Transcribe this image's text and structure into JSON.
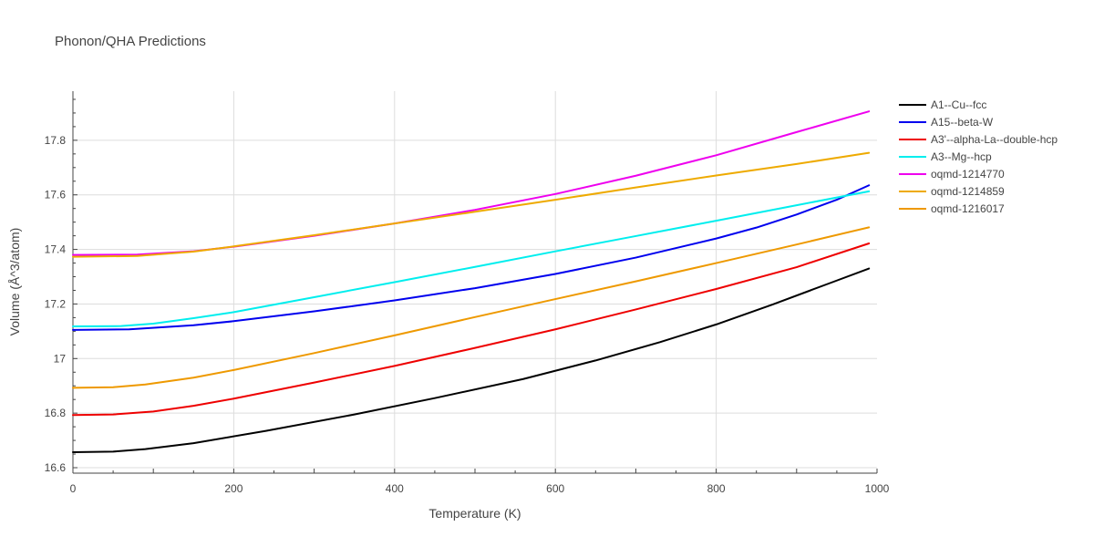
{
  "chart_data": {
    "type": "line",
    "title": "Phonon/QHA Predictions",
    "xlabel": "Temperature (K)",
    "ylabel": "Volume (Å^3/atom)",
    "xlim": [
      0,
      1000
    ],
    "ylim": [
      16.58,
      17.98
    ],
    "xticks": [
      0,
      200,
      400,
      600,
      800,
      1000
    ],
    "xtick_labels": [
      "0",
      "200",
      "400",
      "600",
      "800",
      "1000"
    ],
    "yticks": [
      16.6,
      16.8,
      17.0,
      17.2,
      17.4,
      17.6,
      17.8
    ],
    "ytick_labels": [
      "16.6",
      "16.8",
      "17",
      "17.2",
      "17.4",
      "17.6",
      "17.8"
    ],
    "grid": true,
    "legend_position": "right",
    "series": [
      {
        "name": "A1--Cu--fcc",
        "color": "#000000",
        "x": [
          0,
          50,
          90,
          150,
          240,
          350,
          450,
          560,
          650,
          730,
          800,
          870,
          940,
          990
        ],
        "y": [
          16.657,
          16.659,
          16.668,
          16.69,
          16.735,
          16.795,
          16.855,
          16.925,
          16.993,
          17.06,
          17.125,
          17.198,
          17.275,
          17.33
        ]
      },
      {
        "name": "A15--beta-W",
        "color": "#0000ee",
        "x": [
          0,
          70,
          150,
          200,
          300,
          400,
          500,
          600,
          700,
          800,
          850,
          900,
          950,
          990
        ],
        "y": [
          17.105,
          17.107,
          17.122,
          17.137,
          17.173,
          17.213,
          17.258,
          17.31,
          17.37,
          17.44,
          17.48,
          17.528,
          17.582,
          17.635
        ]
      },
      {
        "name": "A3'--alpha-La--double-hcp",
        "color": "#ee0000",
        "x": [
          0,
          50,
          100,
          150,
          200,
          300,
          400,
          500,
          600,
          700,
          800,
          900,
          990
        ],
        "y": [
          16.793,
          16.795,
          16.806,
          16.827,
          16.853,
          16.912,
          16.973,
          17.039,
          17.107,
          17.18,
          17.255,
          17.335,
          17.422
        ]
      },
      {
        "name": "A3--Mg--hcp",
        "color": "#00eeee",
        "x": [
          0,
          60,
          100,
          150,
          200,
          300,
          400,
          500,
          600,
          700,
          800,
          900,
          990
        ],
        "y": [
          17.118,
          17.119,
          17.128,
          17.148,
          17.17,
          17.225,
          17.28,
          17.336,
          17.393,
          17.449,
          17.505,
          17.562,
          17.613
        ]
      },
      {
        "name": "oqmd-1214770",
        "color": "#ee00ee",
        "x": [
          0,
          80,
          150,
          200,
          300,
          400,
          500,
          600,
          700,
          800,
          900,
          990
        ],
        "y": [
          17.38,
          17.381,
          17.393,
          17.41,
          17.45,
          17.495,
          17.545,
          17.603,
          17.67,
          17.745,
          17.83,
          17.906
        ]
      },
      {
        "name": "oqmd-1214859",
        "color": "#eeaa00",
        "x": [
          0,
          80,
          150,
          200,
          300,
          400,
          500,
          600,
          700,
          800,
          900,
          990
        ],
        "y": [
          17.373,
          17.376,
          17.392,
          17.411,
          17.452,
          17.495,
          17.538,
          17.582,
          17.627,
          17.671,
          17.713,
          17.754
        ]
      },
      {
        "name": "oqmd-1216017",
        "color": "#ee9900",
        "x": [
          0,
          50,
          90,
          150,
          200,
          300,
          400,
          500,
          600,
          700,
          800,
          900,
          990
        ],
        "y": [
          16.893,
          16.895,
          16.905,
          16.93,
          16.958,
          17.02,
          17.085,
          17.152,
          17.218,
          17.283,
          17.35,
          17.418,
          17.481
        ]
      }
    ]
  }
}
